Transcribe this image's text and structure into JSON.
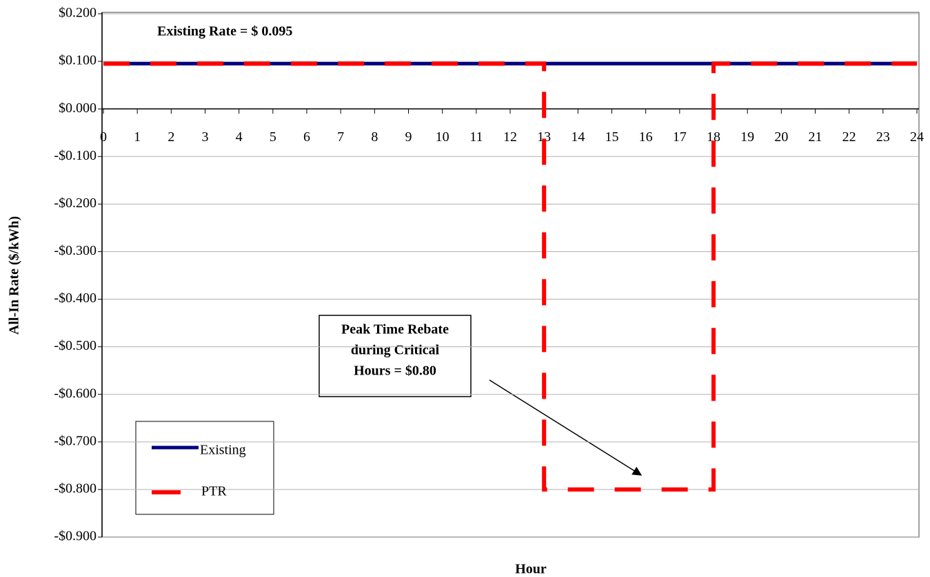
{
  "chart_data": {
    "type": "line",
    "y_label": "All-In Rate ($/kWh)",
    "x_label": "Hour",
    "annotation": "Existing Rate = $ 0.095",
    "callout": [
      "Peak Time Rebate",
      "during Critical",
      "Hours = $0.80"
    ],
    "xlim": [
      0,
      24
    ],
    "xticks": [
      0,
      1,
      2,
      3,
      4,
      5,
      6,
      7,
      8,
      9,
      10,
      11,
      12,
      13,
      14,
      15,
      16,
      17,
      18,
      19,
      20,
      21,
      22,
      23,
      24
    ],
    "ylim": [
      -0.9,
      0.2
    ],
    "yticks": [
      {
        "value": 0.2,
        "label": "$0.200"
      },
      {
        "value": 0.1,
        "label": "$0.100"
      },
      {
        "value": 0,
        "label": "$0.000"
      },
      {
        "value": -0.1,
        "label": "-$0.100"
      },
      {
        "value": -0.2,
        "label": "-$0.200"
      },
      {
        "value": -0.3,
        "label": "-$0.300"
      },
      {
        "value": -0.4,
        "label": "-$0.400"
      },
      {
        "value": -0.5,
        "label": "-$0.500"
      },
      {
        "value": -0.6,
        "label": "-$0.600"
      },
      {
        "value": -0.7,
        "label": "-$0.700"
      },
      {
        "value": -0.8,
        "label": "-$0.800"
      },
      {
        "value": -0.9,
        "label": "-$0.900"
      }
    ],
    "grid": true,
    "series": [
      {
        "name": "Existing",
        "color": "#000080",
        "linestyle": "solid",
        "x": [
          0,
          24
        ],
        "values": [
          0.095,
          0.095
        ]
      },
      {
        "name": "PTR",
        "color": "#ff0000",
        "linestyle": "dashed",
        "x": [
          0,
          13,
          13,
          18,
          18,
          24
        ],
        "values": [
          0.095,
          0.095,
          -0.8,
          -0.8,
          0.095,
          0.095
        ]
      }
    ]
  }
}
